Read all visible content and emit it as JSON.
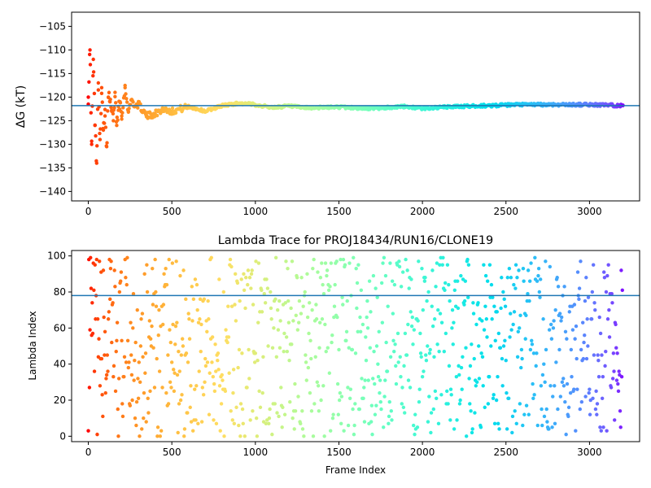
{
  "chart_data": [
    {
      "type": "scatter",
      "title": "",
      "xlabel": "",
      "ylabel": "ΔG (kT)",
      "xlim": [
        -100,
        3300
      ],
      "ylim": [
        -142,
        -102
      ],
      "xticks": [
        0,
        500,
        1000,
        1500,
        2000,
        2500,
        3000
      ],
      "yticks": [
        -140,
        -135,
        -130,
        -125,
        -120,
        -115,
        -110,
        -105
      ],
      "hline": -121.8,
      "hline_color": "#1f77b4",
      "colormap": "rainbow (red at frame 0 → violet at final frame)",
      "grid": false,
      "series": [
        {
          "description": "running free-energy estimate per frame",
          "frame_range": [
            0,
            3200
          ],
          "x": [
            0,
            10,
            20,
            30,
            40,
            50,
            60,
            70,
            80,
            90,
            100,
            110,
            120,
            130,
            140,
            150,
            160,
            170,
            180,
            190,
            200,
            220,
            240,
            260,
            280,
            300,
            350,
            400,
            450,
            500,
            550,
            600,
            700,
            800,
            900,
            1000,
            1100,
            1200,
            1300,
            1400,
            1500,
            1600,
            1700,
            1800,
            1900,
            2000,
            2100,
            2200,
            2300,
            2400,
            2500,
            2600,
            2700,
            2800,
            2900,
            3000,
            3100,
            3200
          ],
          "y": [
            -120,
            -110,
            -130,
            -112,
            -126,
            -134,
            -117,
            -129,
            -118,
            -127,
            -124,
            -130.5,
            -120,
            -121,
            -123,
            -125,
            -119,
            -126,
            -122,
            -121,
            -124,
            -118,
            -123,
            -120.5,
            -122,
            -121.5,
            -124,
            -123.5,
            -122.5,
            -123,
            -122.5,
            -122,
            -123,
            -121.8,
            -121.3,
            -121.6,
            -122.2,
            -121.9,
            -122.3,
            -122.2,
            -122.1,
            -122.3,
            -122.4,
            -122.2,
            -122.0,
            -122.4,
            -122.2,
            -122.0,
            -121.9,
            -121.8,
            -121.7,
            -121.6,
            -121.6,
            -121.6,
            -121.6,
            -121.6,
            -121.7,
            -121.8
          ]
        }
      ]
    },
    {
      "type": "scatter",
      "title": "Lambda Trace for PROJ18434/RUN16/CLONE19",
      "xlabel": "Frame Index",
      "ylabel": "Lambda Index",
      "xlim": [
        -100,
        3300
      ],
      "ylim": [
        -3,
        103
      ],
      "xticks": [
        0,
        500,
        1000,
        1500,
        2000,
        2500,
        3000
      ],
      "yticks": [
        0,
        20,
        40,
        60,
        80,
        100
      ],
      "hline": 78,
      "hline_color": "#1f77b4",
      "colormap": "rainbow (red at frame 0 → violet at final frame)",
      "grid": false,
      "series": [
        {
          "description": "lambda index visited at each frame, uniformly spread over 0–99",
          "frame_range": [
            0,
            3200
          ],
          "lambda_range": [
            0,
            99
          ],
          "point_count": 3200,
          "frame_step": 10
        }
      ]
    }
  ]
}
